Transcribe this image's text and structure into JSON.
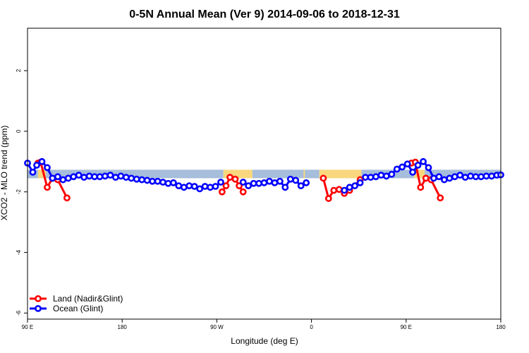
{
  "chart_data": {
    "type": "line",
    "title": "0-5N Annual Mean (Ver 9)   2014-09-06 to 2018-12-31",
    "xlabel": "Longitude (deg E)",
    "ylabel": "XCO2 - MLO trend (ppm)",
    "xlim": [
      90,
      450
    ],
    "ylim": [
      -6.2,
      3.4
    ],
    "x_ticks": [
      {
        "value": 90,
        "label": "90 E"
      },
      {
        "value": 162,
        "label": "180"
      },
      {
        "value": 234,
        "label": "90 W"
      },
      {
        "value": 306,
        "label": "0"
      },
      {
        "value": 378,
        "label": "90 E"
      },
      {
        "value": 450,
        "label": "180"
      }
    ],
    "y_ticks": [
      {
        "value": 2,
        "label": "2"
      },
      {
        "value": 0,
        "label": "0"
      },
      {
        "value": -2,
        "label": "-2"
      },
      {
        "value": -4,
        "label": "-4"
      },
      {
        "value": -6,
        "label": "-6"
      }
    ],
    "band": {
      "y_top": -1.27,
      "y_bottom": -1.55,
      "land_color": "#f9d77e",
      "ocean_color": "#a6bddb"
    },
    "land_band_ranges": [
      [
        98,
        104
      ],
      [
        239,
        261
      ],
      [
        300,
        301
      ],
      [
        312,
        344
      ],
      [
        384,
        392
      ]
    ],
    "ocean_band_ranges": [
      [
        90,
        98
      ],
      [
        104,
        239
      ],
      [
        261,
        312
      ],
      [
        344,
        384
      ],
      [
        392,
        450
      ]
    ],
    "legend_position": "bottom-left",
    "series": [
      {
        "name": "Land (Nadir&Glint)",
        "color": "#ff0000",
        "segments": [
          [
            [
              98,
              -1.05
            ],
            [
              100,
              -1.02
            ],
            [
              105,
              -1.85
            ],
            [
              109,
              -1.55
            ],
            [
              113,
              -1.6
            ],
            [
              120,
              -2.2
            ]
          ],
          [
            [
              238,
              -2.0
            ],
            [
              241,
              -1.8
            ],
            [
              244,
              -1.52
            ],
            [
              248,
              -1.58
            ],
            [
              251,
              -1.8
            ],
            [
              254,
              -2.0
            ]
          ],
          [
            [
              315,
              -1.55
            ],
            [
              319,
              -2.22
            ],
            [
              323,
              -1.95
            ],
            [
              327,
              -1.92
            ],
            [
              331,
              -2.05
            ],
            [
              335,
              -1.95
            ],
            [
              343,
              -1.6
            ]
          ],
          [
            [
              382,
              -1.05
            ],
            [
              385,
              -1.02
            ],
            [
              389,
              -1.85
            ],
            [
              393,
              -1.55
            ],
            [
              397,
              -1.6
            ],
            [
              404,
              -2.2
            ]
          ]
        ]
      },
      {
        "name": "Ocean (Glint)",
        "color": "#0000ff",
        "segments": [
          [
            [
              90,
              -1.05
            ],
            [
              94,
              -1.35
            ],
            [
              97,
              -1.12
            ],
            [
              101,
              -1.0
            ],
            [
              105,
              -1.2
            ],
            [
              109,
              -1.55
            ],
            [
              113,
              -1.5
            ],
            [
              117,
              -1.6
            ],
            [
              121,
              -1.55
            ],
            [
              125,
              -1.5
            ],
            [
              129,
              -1.45
            ],
            [
              133,
              -1.52
            ],
            [
              137,
              -1.48
            ],
            [
              141,
              -1.5
            ],
            [
              145,
              -1.5
            ],
            [
              149,
              -1.48
            ],
            [
              153,
              -1.45
            ],
            [
              157,
              -1.52
            ],
            [
              161,
              -1.48
            ],
            [
              165,
              -1.52
            ],
            [
              169,
              -1.55
            ],
            [
              173,
              -1.58
            ],
            [
              177,
              -1.6
            ],
            [
              181,
              -1.62
            ],
            [
              185,
              -1.65
            ],
            [
              189,
              -1.65
            ],
            [
              193,
              -1.68
            ],
            [
              197,
              -1.72
            ],
            [
              201,
              -1.7
            ],
            [
              205,
              -1.8
            ],
            [
              209,
              -1.85
            ],
            [
              213,
              -1.8
            ],
            [
              217,
              -1.82
            ],
            [
              221,
              -1.9
            ],
            [
              225,
              -1.82
            ],
            [
              229,
              -1.85
            ],
            [
              233,
              -1.82
            ],
            [
              237,
              -1.68
            ]
          ],
          [
            [
              254,
              -1.68
            ],
            [
              258,
              -1.8
            ],
            [
              262,
              -1.72
            ],
            [
              266,
              -1.72
            ],
            [
              270,
              -1.7
            ],
            [
              274,
              -1.65
            ],
            [
              278,
              -1.7
            ],
            [
              282,
              -1.65
            ],
            [
              286,
              -1.85
            ],
            [
              290,
              -1.58
            ],
            [
              294,
              -1.62
            ],
            [
              298,
              -1.8
            ],
            [
              302,
              -1.7
            ]
          ],
          [
            [
              331,
              -1.95
            ],
            [
              335,
              -1.85
            ],
            [
              339,
              -1.8
            ],
            [
              343,
              -1.7
            ],
            [
              347,
              -1.52
            ],
            [
              351,
              -1.52
            ],
            [
              355,
              -1.5
            ],
            [
              359,
              -1.45
            ],
            [
              363,
              -1.48
            ],
            [
              367,
              -1.42
            ],
            [
              371,
              -1.25
            ],
            [
              375,
              -1.18
            ],
            [
              379,
              -1.08
            ],
            [
              383,
              -1.35
            ],
            [
              387,
              -1.12
            ],
            [
              391,
              -1.0
            ],
            [
              395,
              -1.2
            ],
            [
              399,
              -1.55
            ],
            [
              403,
              -1.5
            ],
            [
              407,
              -1.6
            ],
            [
              411,
              -1.55
            ],
            [
              415,
              -1.5
            ],
            [
              419,
              -1.45
            ],
            [
              423,
              -1.52
            ],
            [
              427,
              -1.48
            ],
            [
              431,
              -1.5
            ],
            [
              435,
              -1.5
            ],
            [
              439,
              -1.48
            ],
            [
              443,
              -1.48
            ],
            [
              447,
              -1.45
            ],
            [
              450,
              -1.44
            ]
          ]
        ]
      }
    ]
  }
}
